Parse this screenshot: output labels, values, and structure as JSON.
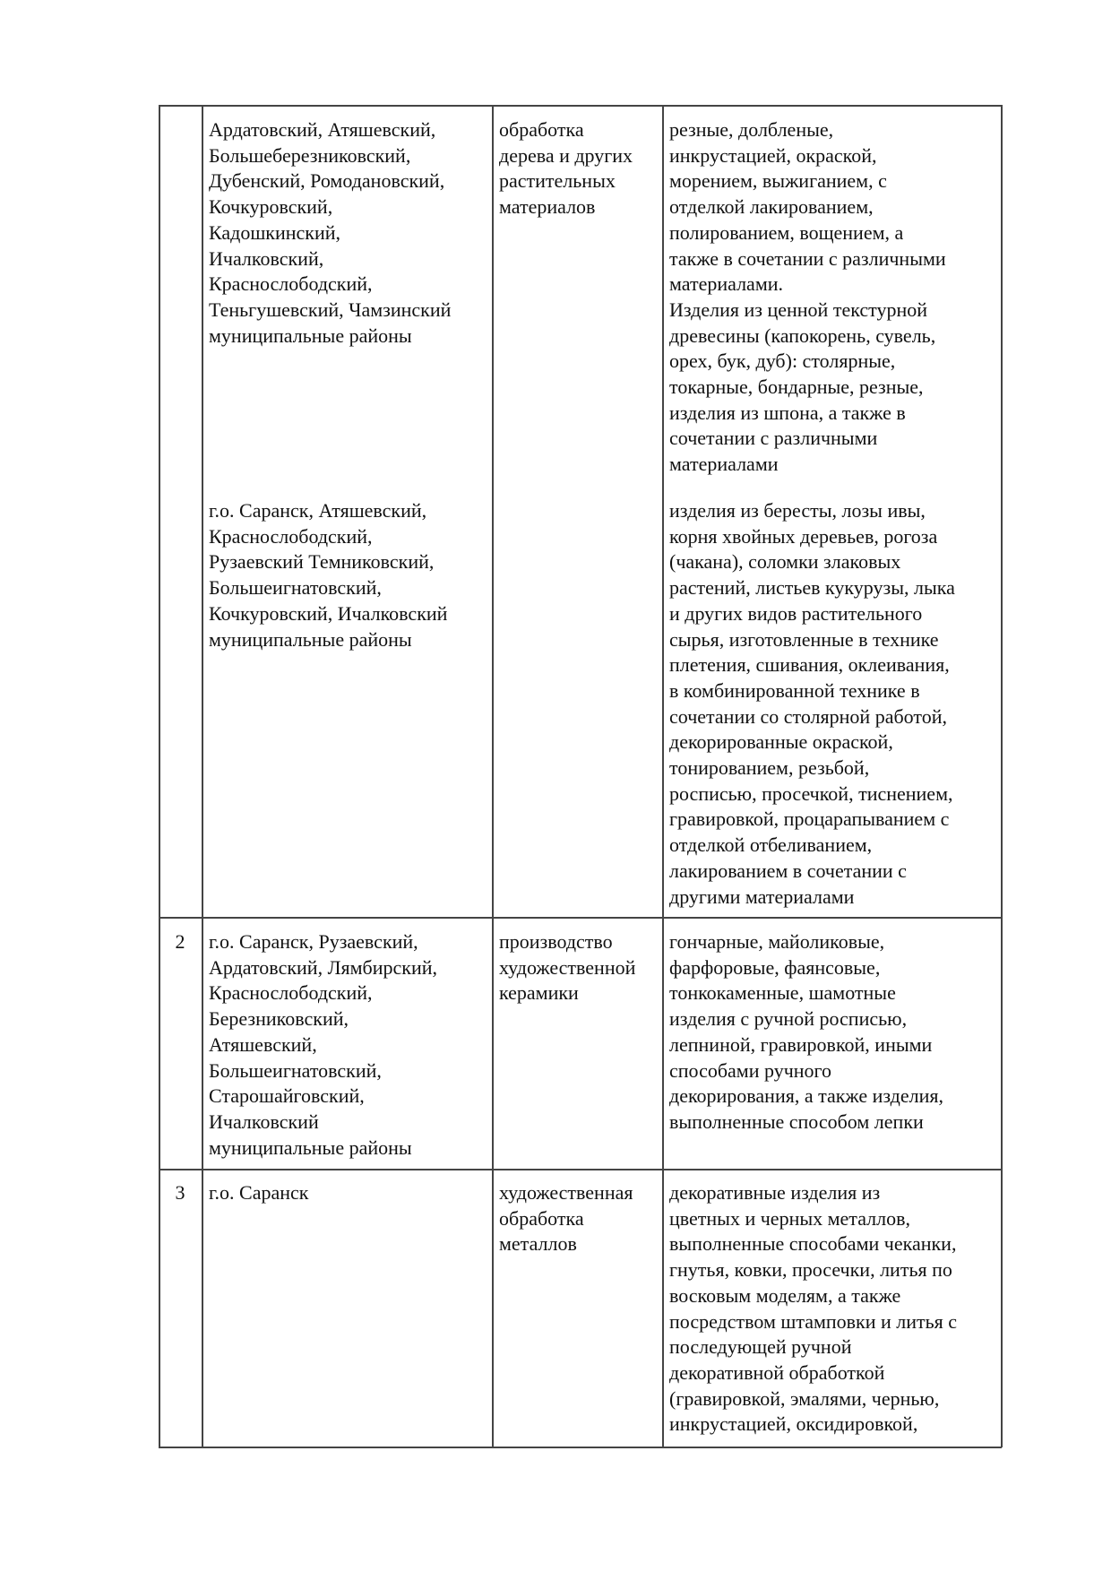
{
  "table": {
    "rows": [
      {
        "entries": [
          {
            "districts": [
              "Ардатовский, Атяшевский,",
              "Большеберезниковский,",
              "Дубенский, Ромодановский,",
              "Кочкуровский,",
              "Кадошкинский,",
              "Ичалковский,",
              "Краснослободский,",
              "Теньгушевский, Чамзинский",
              "муниципальные районы"
            ],
            "craft": [
              "обработка",
              "дерева и других",
              "растительных",
              "материалов"
            ],
            "products": [
              "резные, долбленые,",
              "инкрустацией, окраской,",
              "морением, выжиганием, с",
              "отделкой лакированием,",
              "полированием, вощением, а",
              "также в сочетании с различными",
              "материалами.",
              "Изделия из ценной текстурной",
              "древесины (капокорень, сувель,",
              "орех, бук, дуб): столярные,",
              "токарные, бондарные, резные,",
              "изделия из шпона, а также в",
              "сочетании с различными",
              "материалами"
            ]
          },
          {
            "districts": [
              "г.о. Саранск, Атяшевский,",
              "Краснослободский,",
              "Рузаевский Темниковский,",
              "Большеигнатовский,",
              "Кочкуровский, Ичалковский",
              "муниципальные районы"
            ],
            "products": [
              "изделия из бересты, лозы ивы,",
              "корня хвойных деревьев, рогоза",
              "(чакана), соломки злаковых",
              "растений, листьев кукурузы, лыка",
              "и других видов растительного",
              "сырья, изготовленные в технике",
              "плетения, сшивания, оклеивания,",
              "в комбинированной технике в",
              "сочетании со столярной работой,",
              "декорированные окраской,",
              "тонированием, резьбой,",
              "росписью, просечкой, тиснением,",
              "гравировкой, процарапыванием с",
              "отделкой отбеливанием,",
              "лакированием в сочетании с",
              "другими материалами"
            ]
          }
        ]
      },
      {
        "number": "2",
        "entries": [
          {
            "districts": [
              "г.о. Саранск, Рузаевский,",
              "Ардатовский, Лямбирский,",
              "Краснослободский,",
              "Березниковский,",
              "Атяшевский,",
              "Большеигнатовский,",
              "Старошайговский,",
              "Ичалковский",
              "муниципальные районы"
            ],
            "craft": [
              "производство",
              "художественной",
              "керамики"
            ],
            "products": [
              "гончарные, майоликовые,",
              "фарфоровые, фаянсовые,",
              "тонкокаменные, шамотные",
              "изделия с ручной росписью,",
              "лепниной, гравировкой, иными",
              "способами ручного",
              "декорирования, а также изделия,",
              "выполненные способом лепки"
            ]
          }
        ]
      },
      {
        "number": "3",
        "entries": [
          {
            "districts": [
              "г.о. Саранск"
            ],
            "craft": [
              "художественная",
              "обработка",
              "металлов"
            ],
            "products": [
              "декоративные изделия из",
              "цветных и черных металлов,",
              "выполненные способами чеканки,",
              "гнутья, ковки, просечки, литья по",
              "восковым моделям, а также",
              "посредством штамповки и литья с",
              "последующей ручной",
              "декоративной обработкой",
              "(гравировкой, эмалями, чернью,",
              "инкрустацией, оксидировкой,"
            ]
          }
        ]
      }
    ]
  }
}
